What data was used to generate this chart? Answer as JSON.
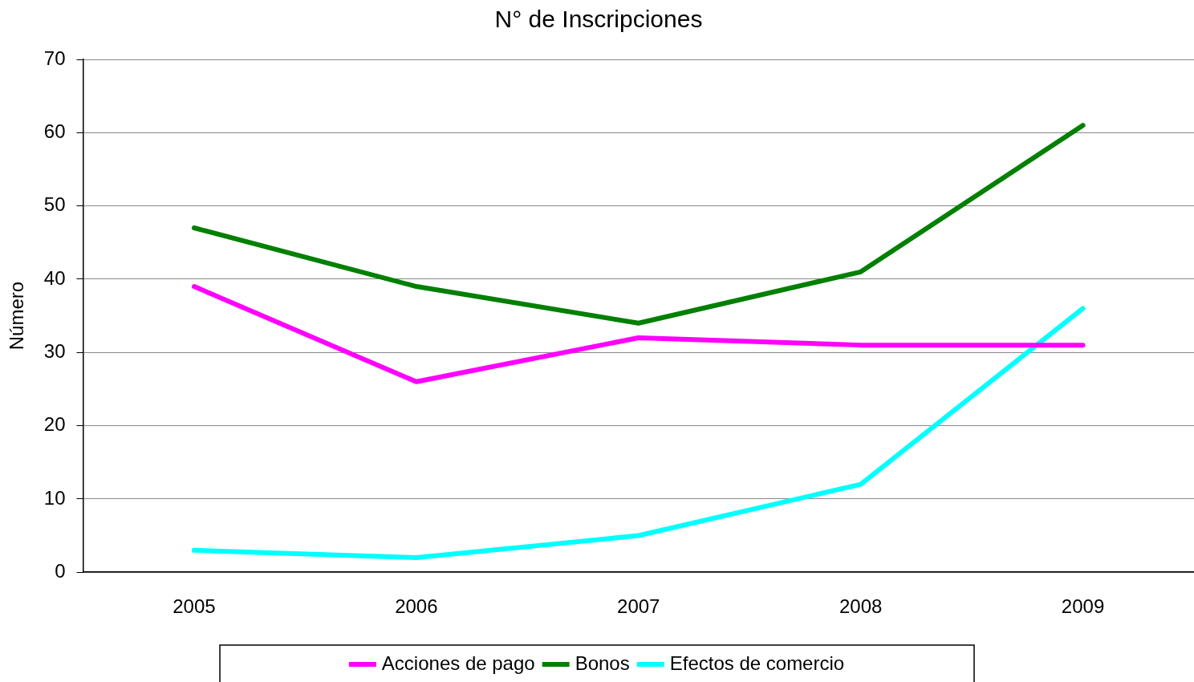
{
  "chart_data": {
    "type": "line",
    "title": "N° de Inscripciones",
    "ylabel": "Número",
    "categories": [
      "2005",
      "2006",
      "2007",
      "2008",
      "2009"
    ],
    "series": [
      {
        "name": "Acciones de pago",
        "color": "#ff00ff",
        "values": [
          39,
          26,
          32,
          31,
          31
        ]
      },
      {
        "name": "Bonos",
        "color": "#008000",
        "values": [
          47,
          39,
          34,
          41,
          61
        ]
      },
      {
        "name": "Efectos de comercio",
        "color": "#00ffff",
        "values": [
          3,
          2,
          5,
          12,
          36
        ]
      }
    ],
    "ylim": [
      0,
      70
    ],
    "yticks": [
      0,
      10,
      20,
      30,
      40,
      50,
      60,
      70
    ],
    "grid": "y",
    "legend": "bottom",
    "marker": "none",
    "line_style": "solid"
  }
}
